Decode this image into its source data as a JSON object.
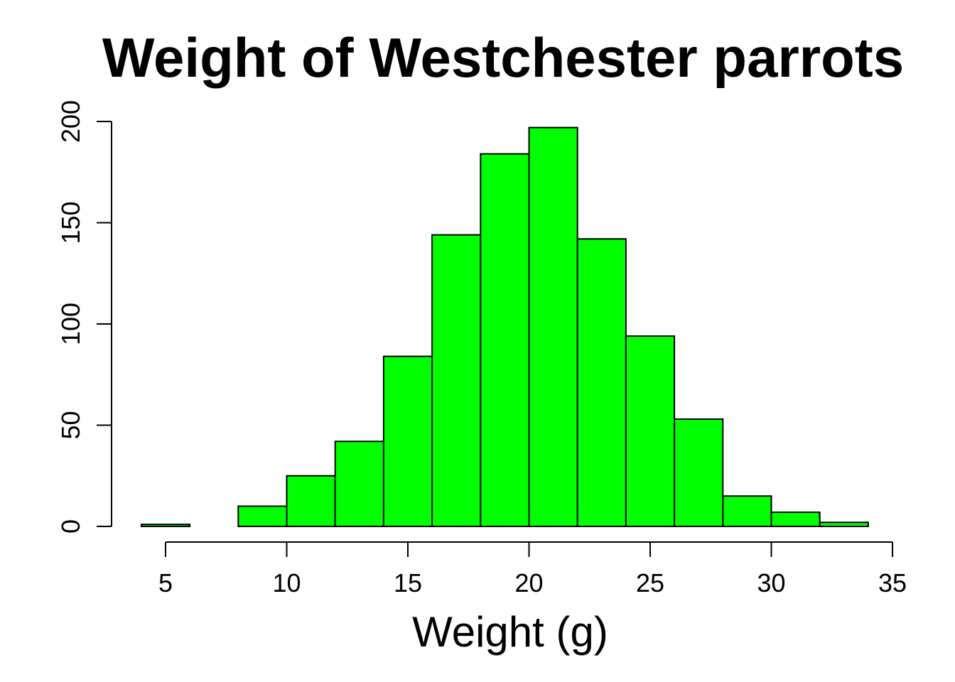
{
  "chart_data": {
    "type": "bar",
    "title": "Weight of Westchester parrots",
    "xlabel": "Weight (g)",
    "ylabel": "",
    "bin_width": 2,
    "bins": [
      {
        "start": 4,
        "end": 6,
        "count": 1
      },
      {
        "start": 6,
        "end": 8,
        "count": 0
      },
      {
        "start": 8,
        "end": 10,
        "count": 10
      },
      {
        "start": 10,
        "end": 12,
        "count": 25
      },
      {
        "start": 12,
        "end": 14,
        "count": 42
      },
      {
        "start": 14,
        "end": 16,
        "count": 84
      },
      {
        "start": 16,
        "end": 18,
        "count": 144
      },
      {
        "start": 18,
        "end": 20,
        "count": 184
      },
      {
        "start": 20,
        "end": 22,
        "count": 197
      },
      {
        "start": 22,
        "end": 24,
        "count": 142
      },
      {
        "start": 24,
        "end": 26,
        "count": 94
      },
      {
        "start": 26,
        "end": 28,
        "count": 53
      },
      {
        "start": 28,
        "end": 30,
        "count": 15
      },
      {
        "start": 30,
        "end": 32,
        "count": 7
      },
      {
        "start": 32,
        "end": 34,
        "count": 2
      }
    ],
    "x_ticks": [
      5,
      10,
      15,
      20,
      25,
      30,
      35
    ],
    "y_ticks": [
      0,
      50,
      100,
      150,
      200
    ],
    "xlim": [
      5,
      35
    ],
    "ylim": [
      0,
      200
    ],
    "grid": false,
    "colors": {
      "bar_fill": "#00ff00",
      "bar_stroke": "#000000"
    }
  }
}
